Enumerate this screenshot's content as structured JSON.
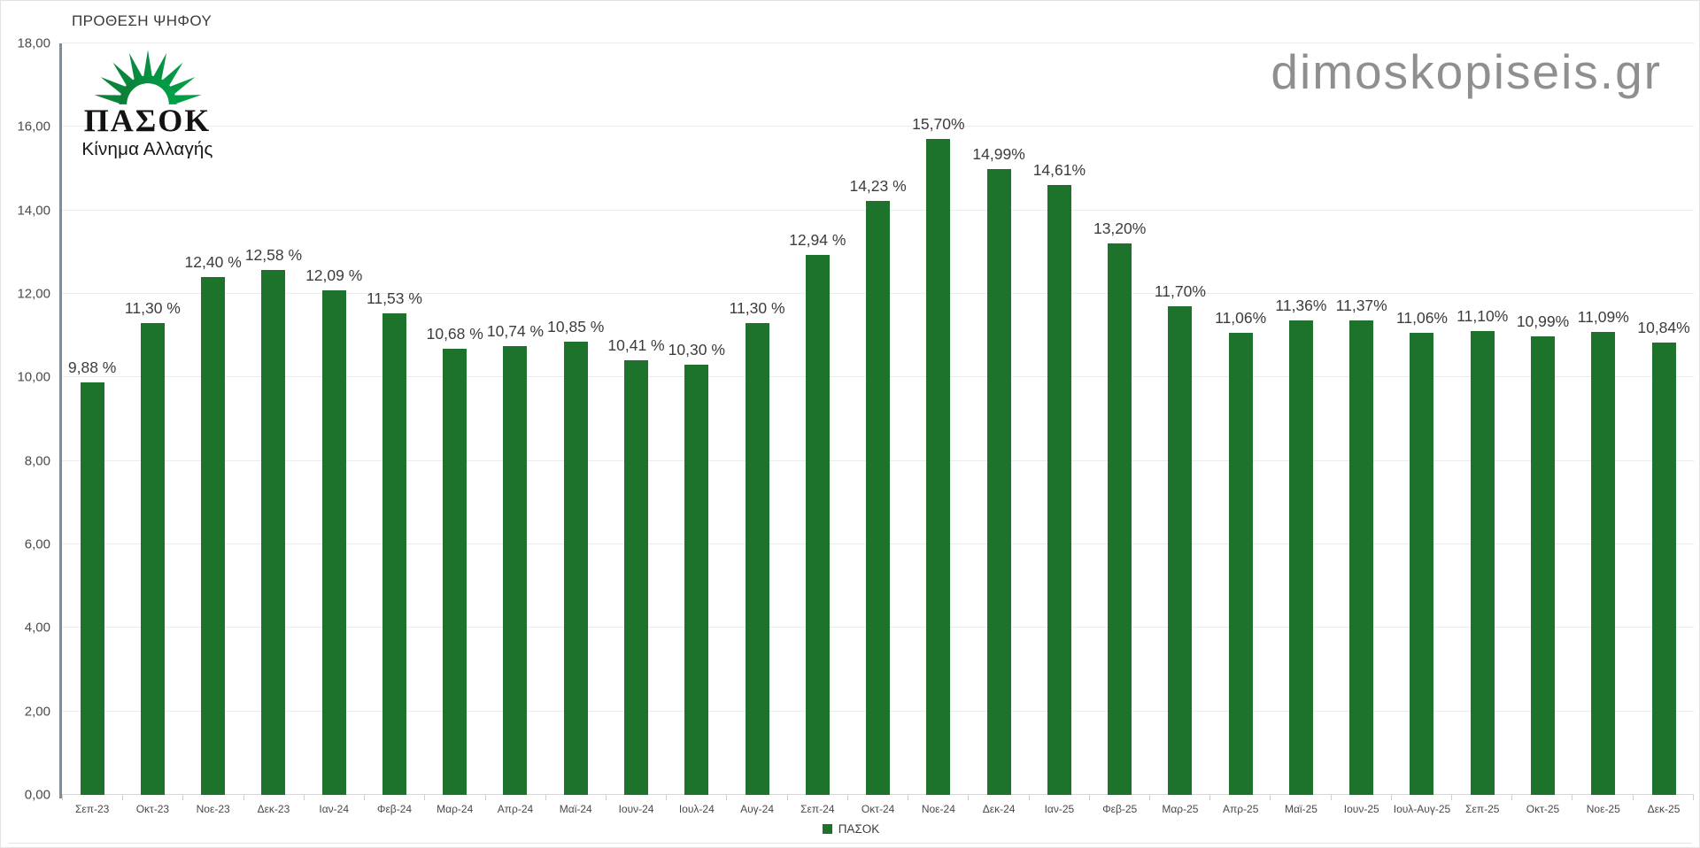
{
  "watermark": {
    "text": "dimoskopiseis.gr"
  },
  "logo": {
    "title": "ΠΑΣΟΚ",
    "subtitle": "Κίνημα Αλλαγής"
  },
  "colors": {
    "bar": "#1d722c",
    "axis_line": "#7b8e9e",
    "gridline": "#ebebeb",
    "baseline": "#d9d9d9",
    "text_dark": "#3c3c3c",
    "text_axis": "#4a4a4a",
    "watermark": "#8f8f8f",
    "logo_green_dark": "#0e7c38",
    "logo_green_light": "#00a348"
  },
  "chart_data": {
    "type": "bar",
    "title": "ΠΡΟΘΕΣΗ ΨΗΦΟΥ",
    "series_name": "ΠΑΣΟΚ",
    "categories": [
      "Σεπ-23",
      "Οκτ-23",
      "Νοε-23",
      "Δεκ-23",
      "Ιαν-24",
      "Φεβ-24",
      "Μαρ-24",
      "Απρ-24",
      "Μαϊ-24",
      "Ιουν-24",
      "Ιουλ-24",
      "Αυγ-24",
      "Σεπ-24",
      "Οκτ-24",
      "Νοε-24",
      "Δεκ-24",
      "Ιαν-25",
      "Φεβ-25",
      "Μαρ-25",
      "Απρ-25",
      "Μαϊ-25",
      "Ιουν-25",
      "Ιουλ-Αυγ-25",
      "Σεπ-25",
      "Οκτ-25",
      "Νοε-25",
      "Δεκ-25"
    ],
    "values": [
      9.88,
      11.3,
      12.4,
      12.58,
      12.09,
      11.53,
      10.68,
      10.74,
      10.85,
      10.41,
      10.3,
      11.3,
      12.94,
      14.23,
      15.7,
      14.99,
      14.61,
      13.2,
      11.7,
      11.06,
      11.36,
      11.37,
      11.06,
      11.1,
      10.99,
      11.09,
      10.84
    ],
    "value_labels": [
      "9,88 %",
      "11,30 %",
      "12,40 %",
      "12,58 %",
      "12,09 %",
      "11,53 %",
      "10,68 %",
      "10,74 %",
      "10,85 %",
      "10,41 %",
      "10,30 %",
      "11,30 %",
      "12,94 %",
      "14,23 %",
      "15,70%",
      "14,99%",
      "14,61%",
      "13,20%",
      "11,70%",
      "11,06%",
      "11,36%",
      "11,37%",
      "11,06%",
      "11,10%",
      "10,99%",
      "11,09%",
      "10,84%"
    ],
    "xlabel": "",
    "ylabel": "",
    "ylim": [
      0,
      18
    ],
    "ytick_values": [
      0,
      2,
      4,
      6,
      8,
      10,
      12,
      14,
      16,
      18
    ],
    "ytick_labels": [
      "0,00",
      "2,00",
      "4,00",
      "6,00",
      "8,00",
      "10,00",
      "12,00",
      "14,00",
      "16,00",
      "18,00"
    ],
    "grid": true,
    "legend_position": "bottom"
  }
}
